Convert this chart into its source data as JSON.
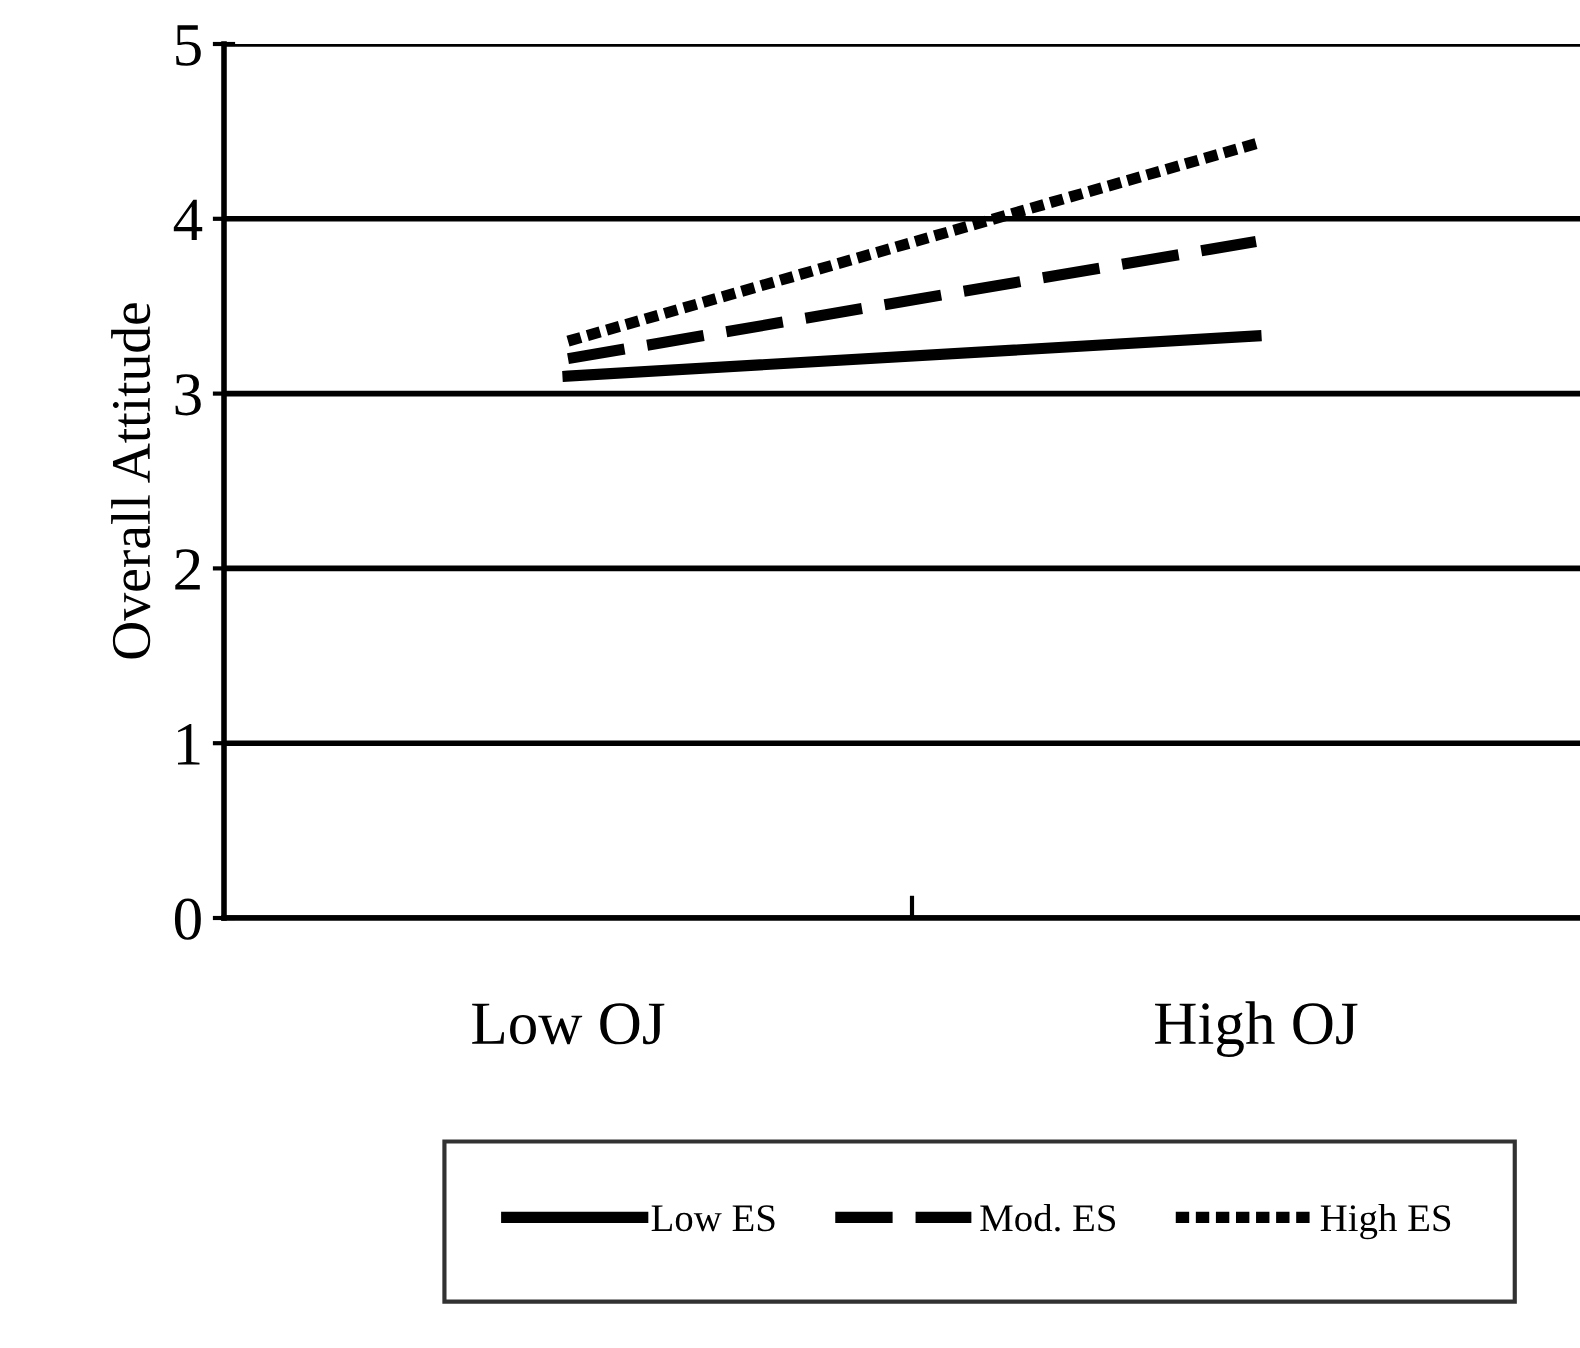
{
  "chart_data": {
    "type": "line",
    "ylabel": "Overall Attitude",
    "categories": [
      "Low OJ",
      "High OJ"
    ],
    "series": [
      {
        "name": "Low ES",
        "color": "#000000",
        "line_style": "solid",
        "values": [
          3.1,
          3.33
        ]
      },
      {
        "name": "Mod. ES",
        "color": "#000000",
        "line_style": "dashed",
        "values": [
          3.2,
          3.87
        ]
      },
      {
        "name": "High ES",
        "color": "#000000",
        "line_style": "dotted",
        "values": [
          3.3,
          4.43
        ]
      }
    ],
    "ylim": [
      0,
      5
    ],
    "yticks": [
      0,
      1,
      2,
      3,
      4,
      5
    ],
    "grid": "y",
    "legend": "bottom",
    "marker": "none"
  }
}
